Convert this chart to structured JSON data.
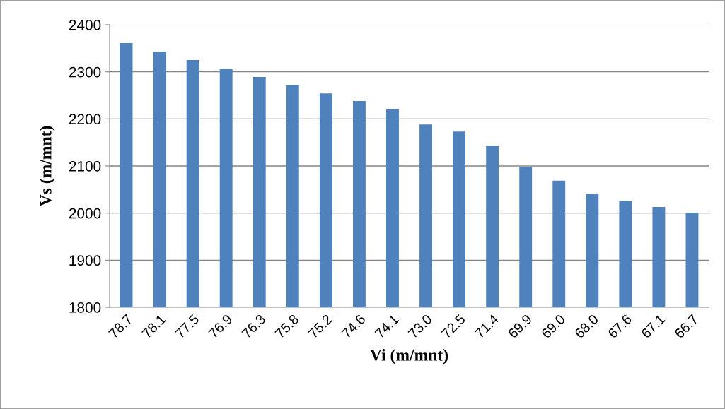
{
  "chart_data": {
    "type": "bar",
    "xlabel": "Vi (m/mnt)",
    "ylabel": "Vs (m/mnt)",
    "categories": [
      "78.7",
      "78.1",
      "77.5",
      "76.9",
      "76.3",
      "75.8",
      "75.2",
      "74.6",
      "74.1",
      "73.0",
      "72.5",
      "71.4",
      "69.9",
      "69.0",
      "68.0",
      "67.6",
      "67.1",
      "66.7"
    ],
    "values": [
      2361,
      2343,
      2325,
      2307,
      2289,
      2272,
      2254,
      2238,
      2221,
      2188,
      2173,
      2143,
      2098,
      2069,
      2041,
      2026,
      2013,
      2001
    ],
    "color": "#4f81bd",
    "ylim": [
      1800,
      2400
    ],
    "yticks": [
      1800,
      1900,
      2000,
      2100,
      2200,
      2300,
      2400
    ],
    "grid": "y",
    "legend": false
  }
}
